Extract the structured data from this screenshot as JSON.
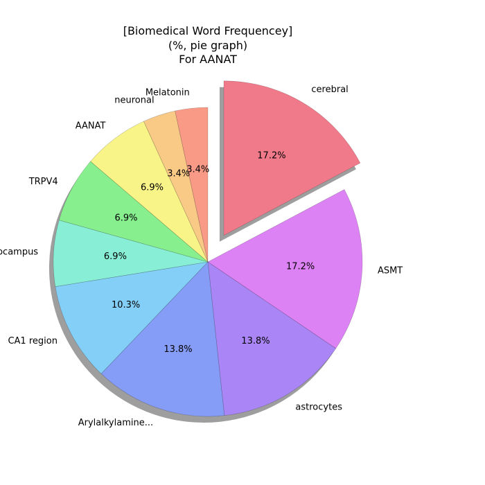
{
  "chart_data": {
    "type": "pie",
    "title_lines": [
      "[Biomedical Word Frequencey]",
      "(%, pie graph)",
      "For AANAT"
    ],
    "value_format": "percent_1dp",
    "start_angle_deg": 90,
    "direction": "clockwise",
    "shadow": true,
    "slices": [
      {
        "label": "cerebral",
        "value": 17.2,
        "color": "#f17a8a",
        "explode": true
      },
      {
        "label": "ASMT",
        "value": 17.2,
        "color": "#dd82f4",
        "explode": false
      },
      {
        "label": "astrocytes",
        "value": 13.8,
        "color": "#a985f5",
        "explode": false
      },
      {
        "label": "Arylalkylamine...",
        "value": 13.8,
        "color": "#869df7",
        "explode": false
      },
      {
        "label": "CA1 region",
        "value": 10.3,
        "color": "#84cff7",
        "explode": false
      },
      {
        "label": "gerbil hippocampus",
        "value": 6.9,
        "color": "#88efd6",
        "explode": false
      },
      {
        "label": "TRPV4",
        "value": 6.9,
        "color": "#87ef8e",
        "explode": false
      },
      {
        "label": "AANAT",
        "value": 6.9,
        "color": "#f9f488",
        "explode": false
      },
      {
        "label": "neuronal",
        "value": 3.4,
        "color": "#f9c986",
        "explode": false
      },
      {
        "label": "Melatonin",
        "value": 3.4,
        "color": "#f99a86",
        "explode": false
      }
    ]
  }
}
